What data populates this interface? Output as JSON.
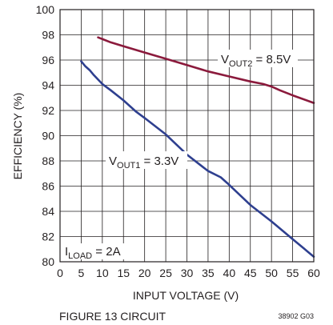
{
  "chart_data": {
    "type": "line",
    "title": "",
    "xlabel": "INPUT VOLTAGE (V)",
    "ylabel": "EFFICIENCY (%)",
    "xlim": [
      0,
      60
    ],
    "ylim": [
      80,
      100
    ],
    "x_ticks": [
      "0",
      "5",
      "10",
      "15",
      "20",
      "25",
      "30",
      "35",
      "40",
      "45",
      "50",
      "55",
      "60"
    ],
    "y_ticks": [
      "80",
      "82",
      "84",
      "86",
      "88",
      "90",
      "92",
      "94",
      "96",
      "98",
      "100"
    ],
    "grid": true,
    "legend": "none",
    "series": [
      {
        "x": [
          9,
          12,
          15,
          20,
          25,
          30,
          35,
          40,
          45,
          48,
          50,
          52,
          55,
          60
        ],
        "y": [
          97.8,
          97.4,
          97.1,
          96.6,
          96.1,
          95.6,
          95.1,
          94.7,
          94.3,
          94.1,
          93.9,
          93.6,
          93.2,
          92.6
        ],
        "color": "#8b1a3c"
      },
      {
        "x": [
          5,
          6,
          7,
          8,
          10,
          12,
          15,
          18,
          20,
          25,
          30,
          35,
          38,
          40,
          45,
          50,
          55,
          60
        ],
        "y": [
          95.9,
          95.5,
          95.2,
          94.8,
          94.1,
          93.6,
          92.8,
          91.9,
          91.4,
          90.1,
          88.5,
          87.2,
          86.7,
          86.1,
          84.5,
          83.2,
          81.8,
          80.4
        ],
        "color": "#2e3f8f"
      }
    ],
    "annotations": {
      "vout2": {
        "prefix": "V",
        "sub": "OUT2",
        "suffix": " = 8.5V"
      },
      "vout1": {
        "prefix": "V",
        "sub": "OUT1",
        "suffix": " = 3.3V"
      },
      "iload": {
        "prefix": "I",
        "sub": "LOAD",
        "suffix": " = 2A"
      }
    }
  },
  "caption": "FIGURE 13 CIRCUIT",
  "figure_code": "38902 G03"
}
